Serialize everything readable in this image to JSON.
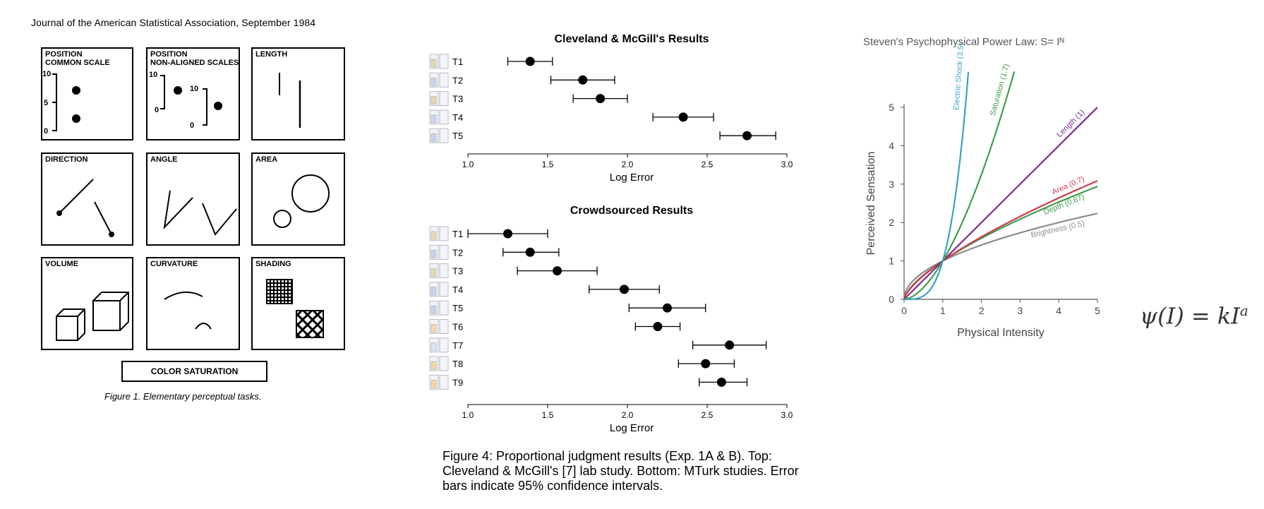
{
  "left_figure": {
    "header": "Journal of the American Statistical Association, September 1984",
    "panels": [
      {
        "title": "POSITION\nCOMMON SCALE",
        "ticks": [
          "10",
          "5",
          "0"
        ]
      },
      {
        "title": "POSITION\nNON-ALIGNED SCALES",
        "ticks": [
          "10",
          "0",
          "10",
          "0"
        ]
      },
      {
        "title": "LENGTH"
      },
      {
        "title": "DIRECTION"
      },
      {
        "title": "ANGLE"
      },
      {
        "title": "AREA"
      },
      {
        "title": "VOLUME"
      },
      {
        "title": "CURVATURE"
      },
      {
        "title": "SHADING"
      }
    ],
    "color_saturation": "COLOR SATURATION",
    "caption": "Figure 1. Elementary perceptual tasks."
  },
  "middle_caption": "Figure 4: Proportional judgment results (Exp. 1A & B). Top: Cleveland & McGill's [7] lab study. Bottom: MTurk studies. Error bars indicate 95% confidence intervals.",
  "right_formula": "ψ(I) = kI",
  "right_formula_sup": "a",
  "chart_data": [
    {
      "type": "scatter",
      "title": "Cleveland & McGill's Results",
      "xlabel": "Log Error",
      "xlim": [
        1.0,
        3.0
      ],
      "xticks": [
        "1.0",
        "1.5",
        "2.0",
        "2.5",
        "3.0"
      ],
      "categories": [
        "T1",
        "T2",
        "T3",
        "T4",
        "T5"
      ],
      "values": [
        1.39,
        1.72,
        1.83,
        2.35,
        2.75
      ],
      "ci_low": [
        1.25,
        1.52,
        1.66,
        2.16,
        2.58
      ],
      "ci_high": [
        1.53,
        1.92,
        2.0,
        2.54,
        2.93
      ]
    },
    {
      "type": "scatter",
      "title": "Crowdsourced Results",
      "xlabel": "Log Error",
      "xlim": [
        1.0,
        3.0
      ],
      "xticks": [
        "1.0",
        "1.5",
        "2.0",
        "2.5",
        "3.0"
      ],
      "categories": [
        "T1",
        "T2",
        "T3",
        "T4",
        "T5",
        "T6",
        "T7",
        "T8",
        "T9"
      ],
      "values": [
        1.25,
        1.39,
        1.56,
        1.98,
        2.25,
        2.19,
        2.64,
        2.49,
        2.59
      ],
      "ci_low": [
        1.0,
        1.22,
        1.31,
        1.76,
        2.01,
        2.05,
        2.41,
        2.32,
        2.45
      ],
      "ci_high": [
        1.5,
        1.57,
        1.81,
        2.2,
        2.49,
        2.33,
        2.87,
        2.67,
        2.75
      ]
    },
    {
      "type": "line",
      "title": "Steven's Psychophysical Power Law: S= Iᴺ",
      "xlabel": "Physical Intensity",
      "ylabel": "Perceived Sensation",
      "xlim": [
        0,
        5
      ],
      "ylim": [
        0,
        5
      ],
      "xticks": [
        "0",
        "1",
        "2",
        "3",
        "4",
        "5"
      ],
      "yticks": [
        "0",
        "1",
        "2",
        "3",
        "4",
        "5"
      ],
      "series": [
        {
          "name": "Electric Shock (3.5)",
          "exponent": 3.5,
          "color": "#3aa3c8"
        },
        {
          "name": "Saturation (1.7)",
          "exponent": 1.7,
          "color": "#3f9e4e"
        },
        {
          "name": "Length (1)",
          "exponent": 1.0,
          "color": "#7b2d8e"
        },
        {
          "name": "Area (0.7)",
          "exponent": 0.7,
          "color": "#d03a4a"
        },
        {
          "name": "Depth (0.67)",
          "exponent": 0.67,
          "color": "#3f9e4e"
        },
        {
          "name": "Brightness (0.5)",
          "exponent": 0.5,
          "color": "#8c8c8c"
        }
      ]
    }
  ]
}
